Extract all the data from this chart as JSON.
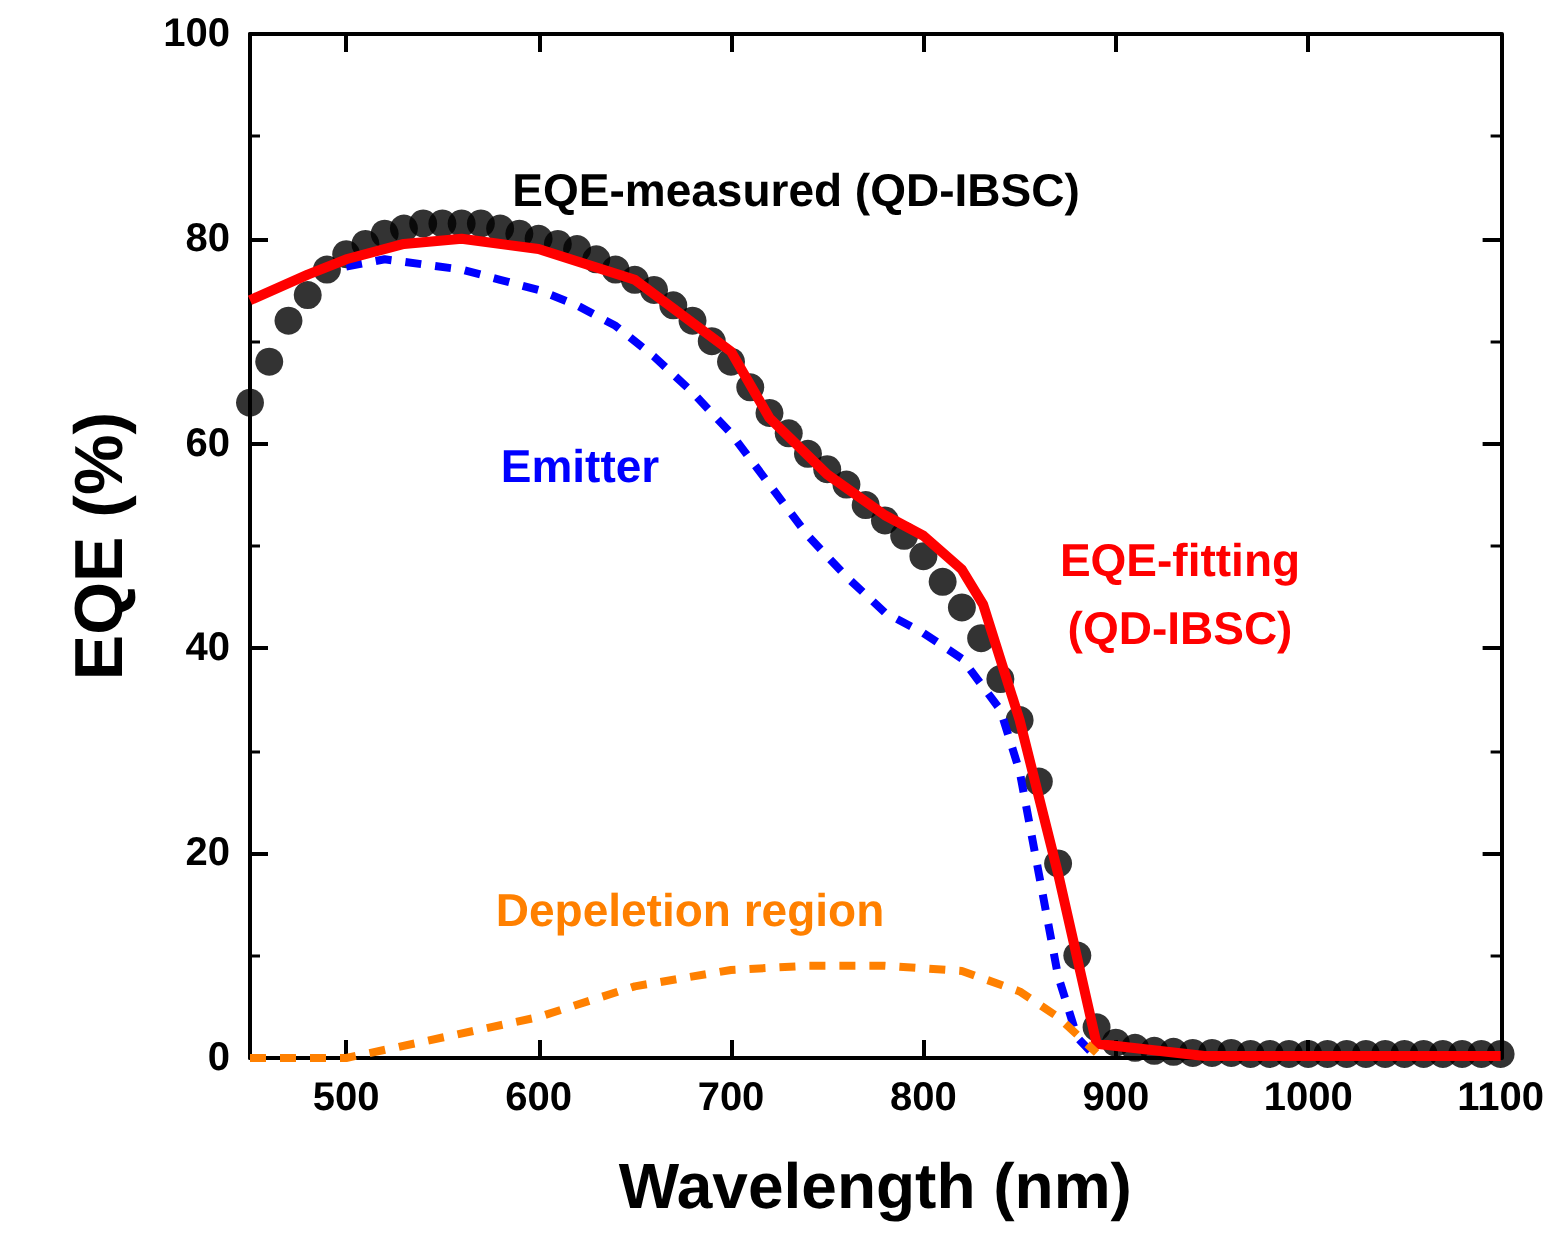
{
  "chart_data": {
    "type": "line",
    "xlabel": "Wavelength (nm)",
    "ylabel": "EQE (%)",
    "xlim": [
      450,
      1100
    ],
    "xticks": [
      500,
      600,
      700,
      800,
      900,
      1000,
      1100
    ],
    "ylim": [
      0,
      100
    ],
    "yticks": [
      0,
      20,
      40,
      60,
      80,
      100
    ],
    "grid": false,
    "legend": false,
    "series": [
      {
        "name": "EQE-measured (QD-IBSC)",
        "type": "scatter",
        "color": "#000000",
        "marker": "circle",
        "x": [
          450,
          460,
          470,
          480,
          490,
          500,
          510,
          520,
          530,
          540,
          550,
          560,
          570,
          580,
          590,
          600,
          610,
          620,
          630,
          640,
          650,
          660,
          670,
          680,
          690,
          700,
          710,
          720,
          730,
          740,
          750,
          760,
          770,
          780,
          790,
          800,
          810,
          820,
          830,
          840,
          850,
          860,
          870,
          880,
          890,
          900,
          910,
          920,
          930,
          940,
          950,
          960,
          970,
          980,
          990,
          1000,
          1010,
          1020,
          1030,
          1040,
          1050,
          1060,
          1070,
          1080,
          1090,
          1100
        ],
        "values": [
          64,
          68,
          72,
          74.5,
          77,
          78.5,
          79.5,
          80.5,
          81,
          81.5,
          81.5,
          81.5,
          81.5,
          81,
          80.5,
          80,
          79.5,
          79,
          78,
          77,
          76,
          75,
          73.5,
          72,
          70,
          68,
          65.5,
          63,
          61,
          59,
          57.5,
          56,
          54,
          52.5,
          51,
          49,
          46.5,
          44,
          41,
          37,
          33,
          27,
          19,
          10,
          3,
          1.5,
          1,
          0.7,
          0.6,
          0.5,
          0.5,
          0.5,
          0.4,
          0.4,
          0.4,
          0.4,
          0.4,
          0.4,
          0.4,
          0.4,
          0.4,
          0.4,
          0.4,
          0.4,
          0.4,
          0.4
        ]
      },
      {
        "name": "Emitter",
        "color": "#0000ff",
        "marker": "none",
        "line_style": "dashed",
        "x": [
          500,
          520,
          540,
          560,
          580,
          600,
          620,
          640,
          660,
          680,
          700,
          720,
          740,
          760,
          780,
          800,
          820,
          840,
          850,
          860,
          870,
          880,
          890
        ],
        "values": [
          77.3,
          78,
          77.5,
          77,
          76,
          75,
          73.5,
          71.5,
          68.5,
          65,
          61,
          56,
          51,
          47,
          43.5,
          41.5,
          39,
          34,
          28,
          18,
          8,
          2,
          0
        ]
      },
      {
        "name": "EQE-fitting\n(QD-IBSC)",
        "color": "#ff0000",
        "marker": "none",
        "line_style": "solid",
        "x": [
          450,
          480,
          500,
          530,
          560,
          600,
          650,
          700,
          720,
          750,
          780,
          800,
          820,
          831,
          850,
          870,
          890,
          946,
          1100
        ],
        "values": [
          74,
          76.5,
          78,
          79.5,
          80,
          79,
          76,
          69,
          62.5,
          57,
          53,
          51,
          47.7,
          44.3,
          33,
          18,
          1.4,
          0.2,
          0.2
        ]
      },
      {
        "name": "Depeletion region",
        "color": "#ff8000",
        "marker": "none",
        "line_style": "dashed",
        "x": [
          450,
          500,
          550,
          600,
          650,
          700,
          740,
          780,
          820,
          850,
          870,
          890
        ],
        "values": [
          0,
          0,
          2,
          4,
          7,
          8.6,
          9,
          9,
          8.5,
          6.5,
          4,
          0.5
        ]
      }
    ]
  }
}
